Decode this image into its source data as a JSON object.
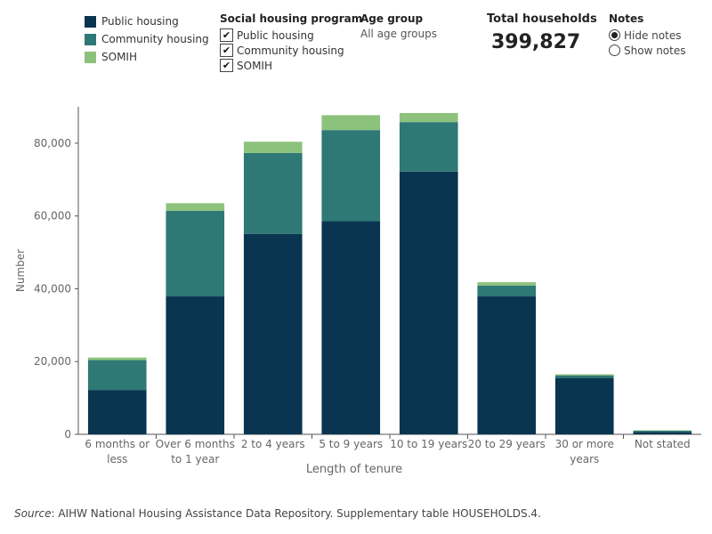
{
  "legend": {
    "items": [
      {
        "label": "Public housing",
        "color": "#0a3550"
      },
      {
        "label": "Community housing",
        "color": "#2e7876"
      },
      {
        "label": "SOMIH",
        "color": "#8cc27c"
      }
    ]
  },
  "filters": {
    "program": {
      "title": "Social housing program",
      "options": [
        "Public housing",
        "Community housing",
        "SOMIH"
      ]
    },
    "age": {
      "title": "Age group",
      "value": "All age groups"
    },
    "total": {
      "title": "Total households",
      "value": "399,827"
    },
    "notes": {
      "title": "Notes",
      "options": [
        {
          "label": "Hide notes",
          "selected": true
        },
        {
          "label": "Show notes",
          "selected": false
        }
      ]
    }
  },
  "source": {
    "prefix": "Source",
    "text": ": AIHW National Housing Assistance Data Repository. Supplementary table HOUSEHOLDS.4."
  },
  "chart_data": {
    "type": "bar",
    "stacked": true,
    "categories": [
      "6 months or less",
      "Over 6 months to 1 year",
      "2 to 4 years",
      "5 to 9 years",
      "10 to 19 years",
      "20 to 29 years",
      "30 or more years",
      "Not stated"
    ],
    "category_labels": [
      [
        "6 months or",
        "less"
      ],
      [
        "Over 6 months",
        "to 1 year"
      ],
      [
        "2 to 4 years"
      ],
      [
        "5 to 9 years"
      ],
      [
        "10 to 19 years"
      ],
      [
        "20 to 29 years"
      ],
      [
        "30 or more",
        "years"
      ],
      [
        "Not stated"
      ]
    ],
    "series": [
      {
        "name": "Public housing",
        "color": "#0a3550",
        "values": [
          12200,
          37900,
          55100,
          58600,
          72200,
          37900,
          15500,
          600
        ]
      },
      {
        "name": "Community housing",
        "color": "#2e7876",
        "values": [
          8200,
          23500,
          22200,
          25000,
          13600,
          3000,
          700,
          400
        ]
      },
      {
        "name": "SOMIH",
        "color": "#8cc27c",
        "values": [
          700,
          2100,
          3100,
          4100,
          2500,
          900,
          300,
          100
        ]
      }
    ],
    "xlabel": "Length of tenure",
    "ylabel": "Number",
    "ylim": [
      0,
      90000
    ],
    "yticks": [
      0,
      20000,
      40000,
      60000,
      80000
    ],
    "ytick_labels": [
      "0",
      "20,000",
      "40,000",
      "60,000",
      "80,000"
    ]
  }
}
